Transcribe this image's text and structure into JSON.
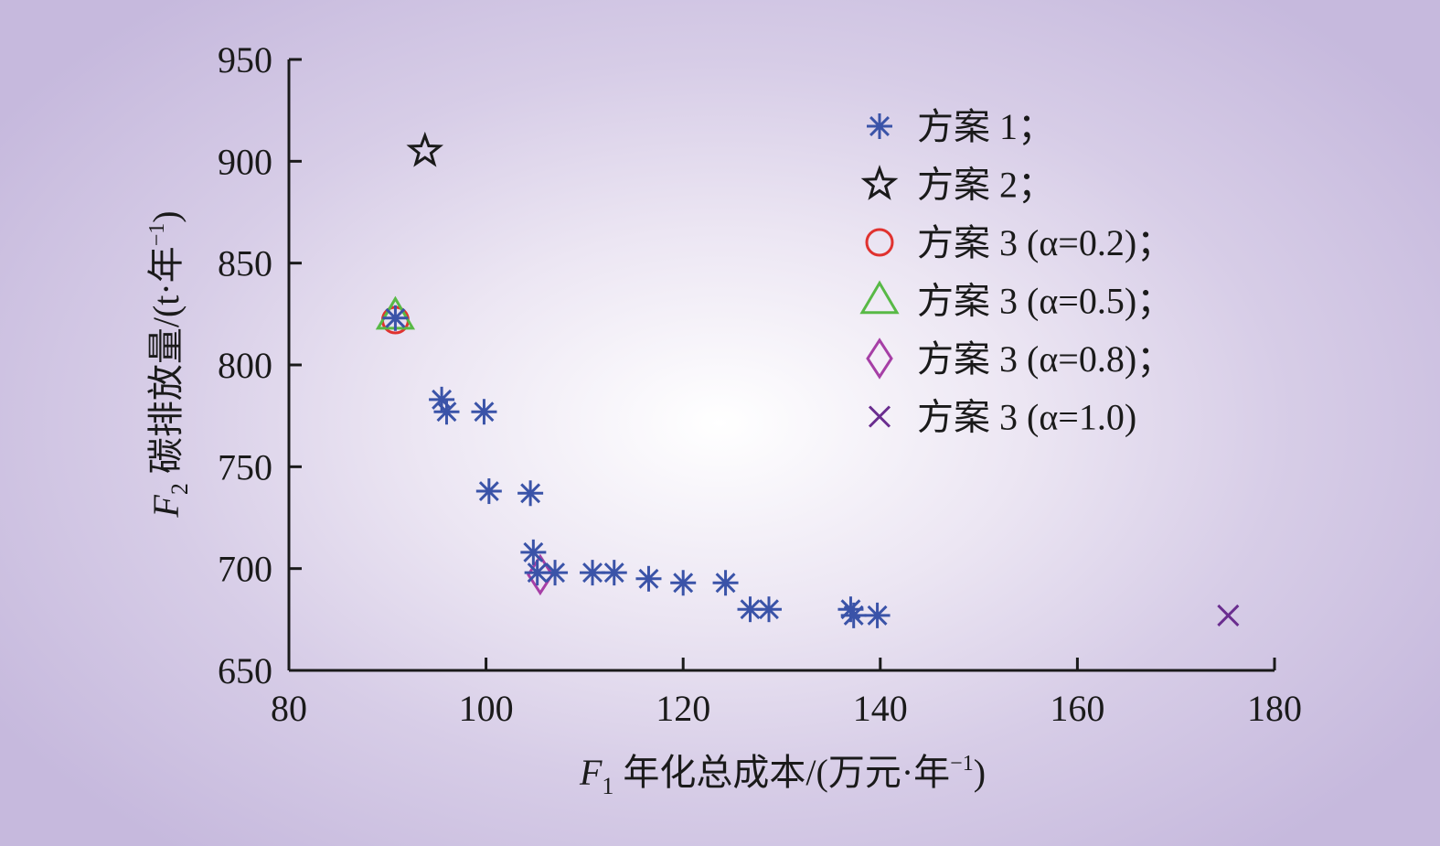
{
  "chart_data": {
    "type": "scatter",
    "xlabel": {
      "var": "F",
      "sub": "1",
      "text": " 年化总成本/(万元·年",
      "sup": "−1",
      "close": ")"
    },
    "ylabel": {
      "var": "F",
      "sub": "2",
      "text": " 碳排放量/(t·年",
      "sup": "−1",
      "close": ")"
    },
    "xlim": [
      80,
      180
    ],
    "ylim": [
      650,
      950
    ],
    "xticks": [
      80,
      100,
      120,
      140,
      160,
      180
    ],
    "yticks": [
      650,
      700,
      750,
      800,
      850,
      900,
      950
    ],
    "grid": false,
    "legend_position": "top-right",
    "series": [
      {
        "name": "方案 1；",
        "marker": "asterisk",
        "color": "#3a53a8",
        "points": [
          [
            90.8,
            823
          ],
          [
            95.5,
            783
          ],
          [
            96.0,
            777
          ],
          [
            99.8,
            777
          ],
          [
            100.3,
            738
          ],
          [
            104.5,
            737
          ],
          [
            104.8,
            708
          ],
          [
            105.2,
            698
          ],
          [
            107.0,
            698
          ],
          [
            110.8,
            698
          ],
          [
            113.0,
            698
          ],
          [
            116.5,
            695
          ],
          [
            120.0,
            693
          ],
          [
            124.3,
            693
          ],
          [
            126.8,
            680
          ],
          [
            128.7,
            680
          ],
          [
            137.0,
            680
          ],
          [
            137.3,
            677
          ],
          [
            139.7,
            677
          ]
        ]
      },
      {
        "name": "方案 2；",
        "marker": "star",
        "color": "#1a1a1a",
        "points": [
          [
            93.8,
            905
          ]
        ]
      },
      {
        "name": "方案 3 (α=0.2)；",
        "marker": "circle",
        "color": "#e0322f",
        "points": [
          [
            90.8,
            822
          ]
        ]
      },
      {
        "name": "方案 3 (α=0.5)；",
        "marker": "triangle",
        "color": "#58b946",
        "points": [
          [
            90.8,
            824
          ]
        ]
      },
      {
        "name": "方案 3 (α=0.8)；",
        "marker": "diamond",
        "color": "#a63fa6",
        "points": [
          [
            105.5,
            697
          ]
        ]
      },
      {
        "name": "方案 3 (α=1.0)",
        "marker": "x",
        "color": "#6a2d8f",
        "points": [
          [
            175.3,
            677
          ]
        ]
      }
    ]
  }
}
